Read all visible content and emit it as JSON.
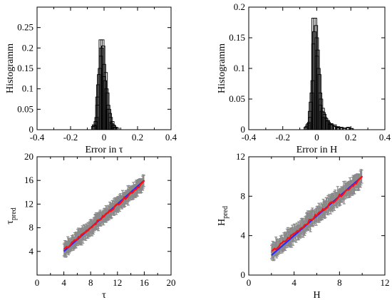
{
  "chart_data": [
    {
      "id": "hist_tau",
      "type": "bar",
      "xlabel": "Error in τ",
      "ylabel": "Histogramm",
      "xlim": [
        -0.4,
        0.4
      ],
      "ylim": [
        0,
        0.3
      ],
      "xticks": [
        "-0.4",
        "-0.2",
        "0",
        "0.2",
        "0.4"
      ],
      "yticks": [
        "0",
        "0.05",
        "0.1",
        "0.15",
        "0.2",
        "0.25"
      ],
      "bin_width": 0.02,
      "series": [
        {
          "bins": [
            [
              -0.06,
              0.012
            ],
            [
              -0.04,
              0.08
            ],
            [
              -0.02,
              0.22
            ],
            [
              0.0,
              0.13
            ],
            [
              0.02,
              0.05
            ],
            [
              0.04,
              0.018
            ],
            [
              0.06,
              0.006
            ]
          ]
        },
        {
          "bins": [
            [
              -0.05,
              0.02
            ],
            [
              -0.03,
              0.135
            ],
            [
              -0.01,
              0.22
            ],
            [
              0.01,
              0.14
            ],
            [
              0.03,
              0.05
            ],
            [
              0.05,
              0.02
            ],
            [
              0.07,
              0.006
            ]
          ]
        },
        {
          "bins": [
            [
              -0.055,
              0.01
            ],
            [
              -0.035,
              0.11
            ],
            [
              -0.015,
              0.2
            ],
            [
              0.005,
              0.12
            ],
            [
              0.025,
              0.06
            ],
            [
              0.045,
              0.015
            ],
            [
              0.065,
              0.005
            ]
          ]
        },
        {
          "bins": [
            [
              -0.045,
              0.03
            ],
            [
              -0.025,
              0.15
            ],
            [
              -0.005,
              0.205
            ],
            [
              0.015,
              0.1
            ],
            [
              0.035,
              0.04
            ],
            [
              0.055,
              0.012
            ]
          ]
        },
        {
          "bins": [
            [
              -0.065,
              0.008
            ],
            [
              -0.04,
              0.06
            ],
            [
              -0.02,
              0.18
            ],
            [
              0.0,
              0.16
            ],
            [
              0.02,
              0.09
            ],
            [
              0.04,
              0.03
            ],
            [
              0.06,
              0.01
            ],
            [
              0.08,
              0.004
            ]
          ]
        }
      ]
    },
    {
      "id": "hist_H",
      "type": "bar",
      "xlabel": "Error in H",
      "ylabel": "Histogramm",
      "xlim": [
        -0.4,
        0.4
      ],
      "ylim": [
        0,
        0.2
      ],
      "xticks": [
        "-0.4",
        "-0.2",
        "0",
        "0.2",
        "0.4"
      ],
      "yticks": [
        "0",
        "0.05",
        "0.1",
        "0.15",
        "0.2"
      ],
      "bin_width": 0.02,
      "series": [
        {
          "bins": [
            [
              -0.06,
              0.005
            ],
            [
              -0.04,
              0.03
            ],
            [
              -0.02,
              0.182
            ],
            [
              0.0,
              0.12
            ],
            [
              0.02,
              0.04
            ],
            [
              0.04,
              0.02
            ],
            [
              0.06,
              0.015
            ],
            [
              0.08,
              0.01
            ],
            [
              0.1,
              0.006
            ],
            [
              0.12,
              0.004
            ]
          ]
        },
        {
          "bins": [
            [
              -0.05,
              0.01
            ],
            [
              -0.03,
              0.06
            ],
            [
              -0.01,
              0.182
            ],
            [
              0.01,
              0.1
            ],
            [
              0.03,
              0.03
            ],
            [
              0.05,
              0.02
            ],
            [
              0.07,
              0.012
            ],
            [
              0.09,
              0.008
            ],
            [
              0.11,
              0.005
            ],
            [
              0.13,
              0.003
            ]
          ]
        },
        {
          "bins": [
            [
              -0.055,
              0.008
            ],
            [
              -0.035,
              0.045
            ],
            [
              -0.015,
              0.16
            ],
            [
              0.005,
              0.13
            ],
            [
              0.025,
              0.05
            ],
            [
              0.045,
              0.025
            ],
            [
              0.065,
              0.015
            ],
            [
              0.085,
              0.01
            ],
            [
              0.105,
              0.008
            ],
            [
              0.125,
              0.005
            ],
            [
              0.145,
              0.004
            ],
            [
              0.165,
              0.003
            ],
            [
              0.185,
              0.004
            ],
            [
              0.205,
              0.002
            ]
          ]
        },
        {
          "bins": [
            [
              -0.045,
              0.012
            ],
            [
              -0.025,
              0.08
            ],
            [
              -0.005,
              0.17
            ],
            [
              0.015,
              0.09
            ],
            [
              0.035,
              0.035
            ],
            [
              0.055,
              0.018
            ],
            [
              0.075,
              0.01
            ]
          ]
        },
        {
          "bins": [
            [
              -0.065,
              0.004
            ],
            [
              -0.04,
              0.02
            ],
            [
              -0.02,
              0.14
            ],
            [
              0.0,
              0.15
            ],
            [
              0.02,
              0.06
            ],
            [
              0.04,
              0.028
            ],
            [
              0.06,
              0.014
            ],
            [
              0.08,
              0.009
            ],
            [
              0.1,
              0.006
            ],
            [
              0.12,
              0.004
            ],
            [
              0.14,
              0.003
            ],
            [
              0.16,
              0.002
            ],
            [
              0.18,
              0.003
            ],
            [
              0.2,
              0.002
            ]
          ]
        }
      ]
    },
    {
      "id": "pred_tau",
      "type": "scatter",
      "xlabel": "τ",
      "ylabel_main": "τ",
      "ylabel_sub": "pred",
      "xlim": [
        0,
        20
      ],
      "ylim": [
        0,
        20
      ],
      "xticks": [
        "0",
        "4",
        "8",
        "12",
        "16",
        "20"
      ],
      "yticks": [
        "4",
        "8",
        "12",
        "16",
        "20"
      ],
      "x_range": [
        4,
        16
      ],
      "error_halfwidth": 1.3,
      "series": [
        {
          "name": "prediction",
          "x": [
            4,
            16
          ],
          "y": [
            4.2,
            15.8
          ],
          "color": "#ff1010"
        },
        {
          "name": "ideal",
          "x": [
            4,
            16
          ],
          "y": [
            4,
            16
          ],
          "color": "#2a2aff"
        }
      ],
      "colors": {
        "errorbar": "#8a8a8a"
      }
    },
    {
      "id": "pred_H",
      "type": "scatter",
      "xlabel": "H",
      "ylabel_main": "H",
      "ylabel_sub": "pred",
      "xlim": [
        0,
        12
      ],
      "ylim": [
        0,
        12
      ],
      "xticks": [
        "0",
        "4",
        "8",
        "12"
      ],
      "yticks": [
        "0",
        "4",
        "8",
        "12"
      ],
      "x_range": [
        2,
        10
      ],
      "error_halfwidth": 0.9,
      "series": [
        {
          "name": "prediction",
          "x": [
            2,
            10
          ],
          "y": [
            2.3,
            9.9
          ],
          "color": "#ff1010"
        },
        {
          "name": "ideal",
          "x": [
            2,
            10
          ],
          "y": [
            2,
            10
          ],
          "color": "#2a2aff"
        }
      ],
      "colors": {
        "errorbar": "#8a8a8a"
      }
    }
  ]
}
